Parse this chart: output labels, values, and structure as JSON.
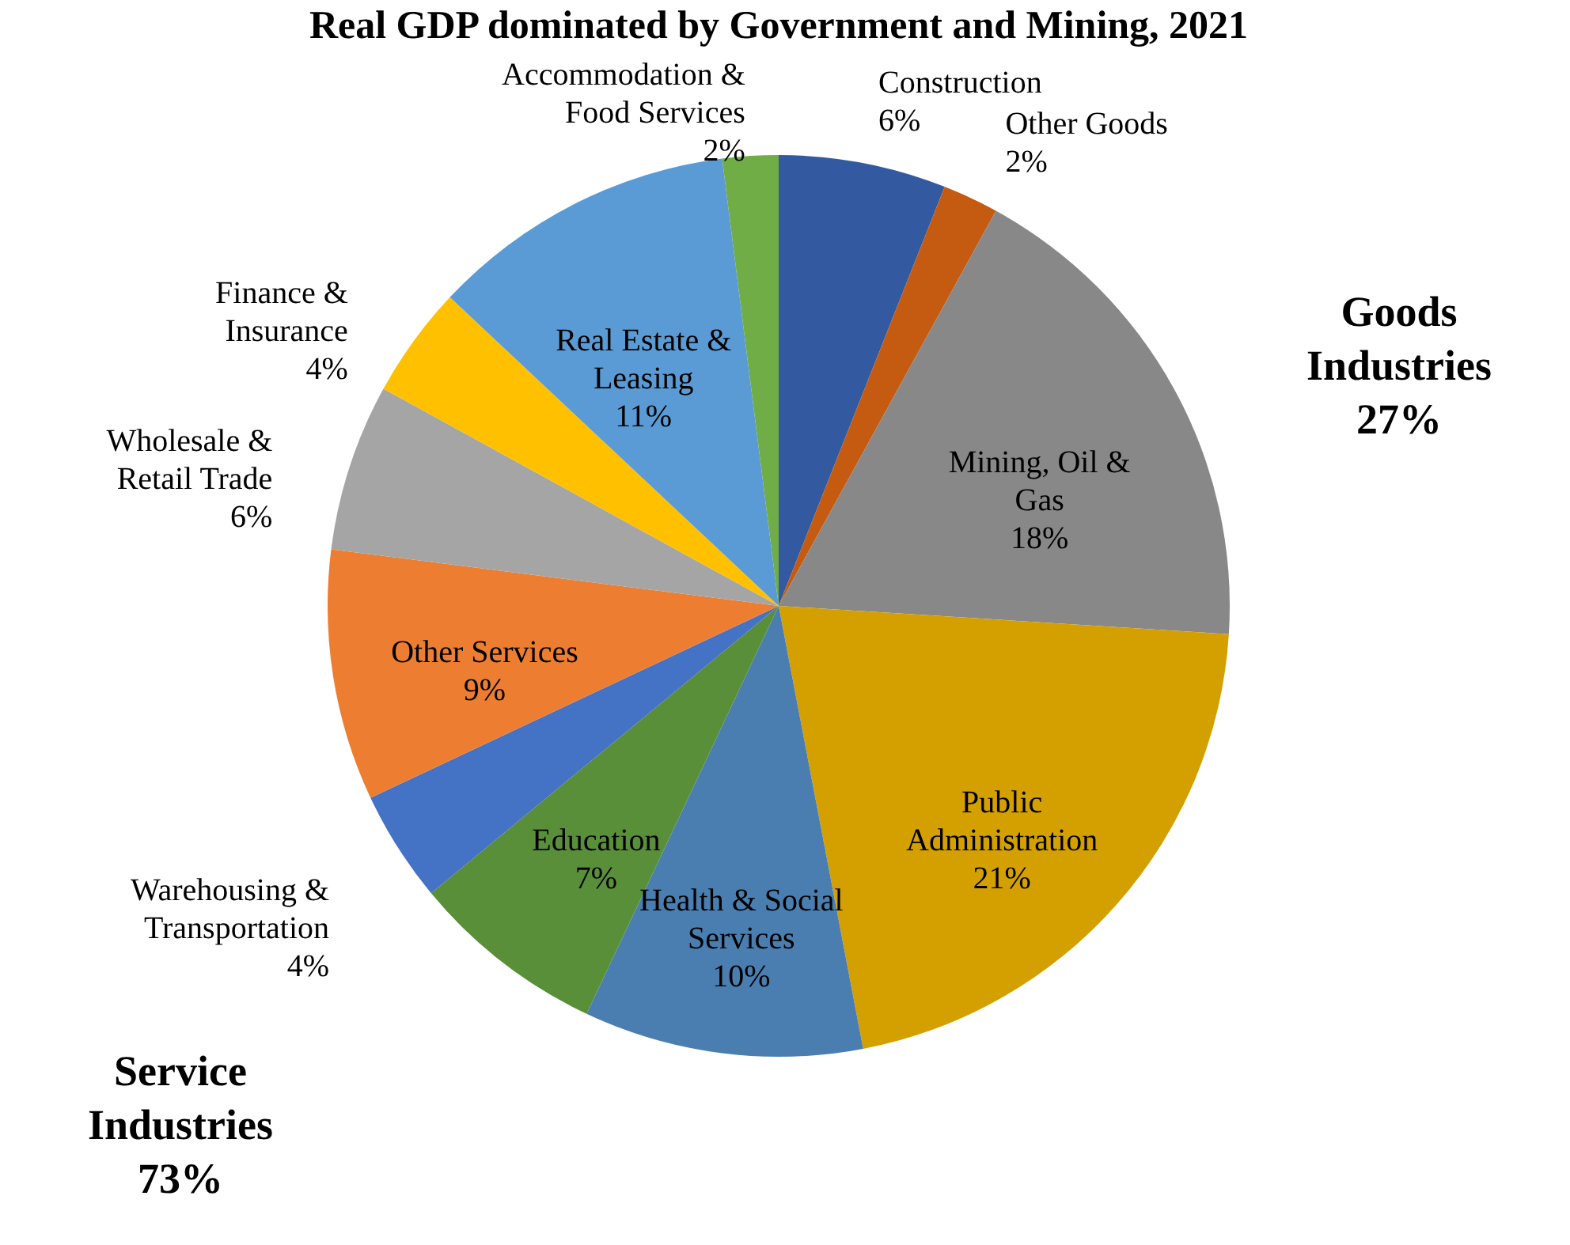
{
  "chart_data": {
    "type": "pie",
    "title": "Real GDP dominated by Government and Mining, 2021",
    "categories": [
      "Construction",
      "Other Goods",
      "Mining, Oil & Gas",
      "Public Administration",
      "Health & Social Services",
      "Education",
      "Warehousing & Transportation",
      "Other Services",
      "Wholesale & Retail Trade",
      "Finance & Insurance",
      "Real Estate & Leasing",
      "Accommodation & Food Services"
    ],
    "values": [
      6,
      2,
      18,
      21,
      10,
      7,
      4,
      9,
      6,
      4,
      11,
      2
    ],
    "value_labels": [
      "6%",
      "2%",
      "18%",
      "21%",
      "10%",
      "7%",
      "4%",
      "9%",
      "6%",
      "4%",
      "11%",
      "2%"
    ],
    "colors": [
      "#335aa0",
      "#c55a11",
      "#888888",
      "#d4a000",
      "#4a7eb0",
      "#5a8f3a",
      "#4472c4",
      "#ed7d31",
      "#a5a5a5",
      "#ffc000",
      "#5b9bd5",
      "#70ad47"
    ],
    "annotations": [
      "Goods Industries 27%",
      "Service Industries 73%"
    ]
  }
}
